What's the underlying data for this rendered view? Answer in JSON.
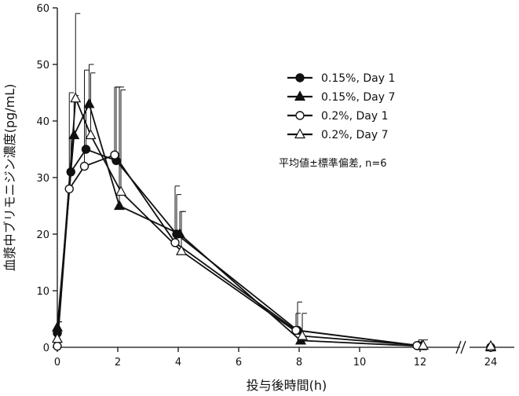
{
  "chart_data": {
    "type": "line",
    "xlabel": "投与後時間(h)",
    "ylabel": "血漿中ブリモニジン濃度(pg/mL)",
    "ylim": [
      0,
      60
    ],
    "x_ticks": [
      "0",
      "2",
      "4",
      "6",
      "8",
      "10",
      "12",
      "24"
    ],
    "y_ticks": [
      "0",
      "10",
      "20",
      "30",
      "40",
      "50",
      "60"
    ],
    "x_axis_break": "between 12 and 24",
    "legend_position": "upper-right",
    "note": "平均値±標準偏差, n=6",
    "series": [
      {
        "name": "0.15%, Day 1",
        "marker": "filled-circle",
        "x": [
          0,
          0.5,
          1,
          2,
          4,
          8,
          12,
          24
        ],
        "y": [
          2.5,
          31,
          35,
          33,
          20,
          3,
          0.3,
          0
        ],
        "sd": [
          2,
          6,
          8,
          13,
          7,
          5,
          1,
          0
        ]
      },
      {
        "name": "0.15%, Day 7",
        "marker": "filled-triangle",
        "x": [
          0,
          0.5,
          1,
          2,
          4,
          8,
          12,
          24
        ],
        "y": [
          3.5,
          37.5,
          43,
          25,
          20,
          1.2,
          0.2,
          0
        ],
        "sd": [
          1,
          7,
          7,
          21,
          4,
          0,
          0,
          0
        ]
      },
      {
        "name": "0.2%, Day 1",
        "marker": "open-circle",
        "x": [
          0,
          0.5,
          1,
          2,
          4,
          8,
          12,
          24
        ],
        "y": [
          0.2,
          28,
          32,
          34,
          18.5,
          3,
          0.3,
          0
        ],
        "sd": [
          0,
          17,
          17,
          12,
          10,
          3,
          0,
          0
        ]
      },
      {
        "name": "0.2%, Day 7",
        "marker": "open-triangle",
        "x": [
          0,
          0.5,
          1,
          2,
          4,
          8,
          12,
          24
        ],
        "y": [
          1.5,
          44,
          37.5,
          27.5,
          17,
          2,
          0.3,
          0.2
        ],
        "sd": [
          1,
          15,
          11,
          18,
          7,
          4,
          1,
          0
        ]
      }
    ]
  }
}
